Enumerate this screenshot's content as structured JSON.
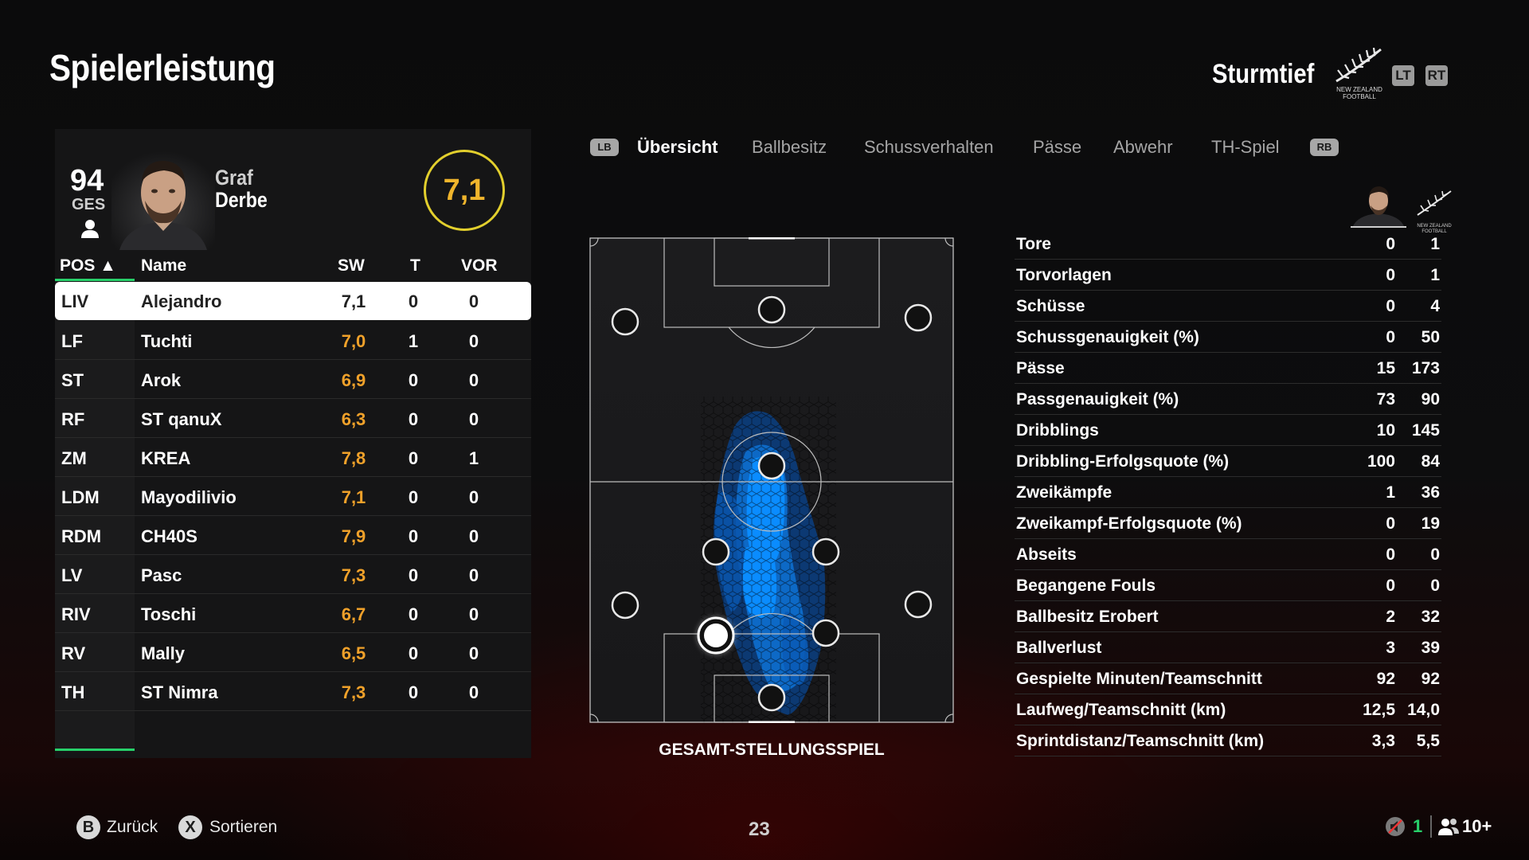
{
  "header": {
    "title": "Spielerleistung",
    "team_name": "Sturmtief",
    "team_logo_text": "NEW ZEALAND FOOTBALL",
    "lt_label": "LT",
    "rt_label": "RT"
  },
  "player": {
    "overall": "94",
    "overall_label": "GES",
    "first_name": "Graf",
    "last_name": "Derbe",
    "match_rating": "7,1"
  },
  "table": {
    "headers": {
      "pos": "POS ▲",
      "name": "Name",
      "sw": "SW",
      "t": "T",
      "vor": "VOR"
    },
    "rows": [
      {
        "pos": "LIV",
        "name": "Alejandro",
        "sw": "7,1",
        "t": "0",
        "vor": "0"
      },
      {
        "pos": "LF",
        "name": "Tuchti",
        "sw": "7,0",
        "t": "1",
        "vor": "0"
      },
      {
        "pos": "ST",
        "name": "Arok",
        "sw": "6,9",
        "t": "0",
        "vor": "0"
      },
      {
        "pos": "RF",
        "name": "ST qanuX",
        "sw": "6,3",
        "t": "0",
        "vor": "0"
      },
      {
        "pos": "ZM",
        "name": "KREA",
        "sw": "7,8",
        "t": "0",
        "vor": "1"
      },
      {
        "pos": "LDM",
        "name": "Mayodilivio",
        "sw": "7,1",
        "t": "0",
        "vor": "0"
      },
      {
        "pos": "RDM",
        "name": "CH40S",
        "sw": "7,9",
        "t": "0",
        "vor": "0"
      },
      {
        "pos": "LV",
        "name": "Pasc",
        "sw": "7,3",
        "t": "0",
        "vor": "0"
      },
      {
        "pos": "RIV",
        "name": "Toschi",
        "sw": "6,7",
        "t": "0",
        "vor": "0"
      },
      {
        "pos": "RV",
        "name": "Mally",
        "sw": "6,5",
        "t": "0",
        "vor": "0"
      },
      {
        "pos": "TH",
        "name": "ST Nimra",
        "sw": "7,3",
        "t": "0",
        "vor": "0"
      }
    ]
  },
  "tabs": {
    "lb": "LB",
    "rb": "RB",
    "items": [
      "Übersicht",
      "Ballbesitz",
      "Schussverhalten",
      "Pässe",
      "Abwehr",
      "TH-Spiel"
    ],
    "active": "Übersicht"
  },
  "pitch": {
    "caption": "GESAMT-STELLUNGSSPIEL"
  },
  "stats": {
    "team_logo_text": "NEW ZEALAND FOOTBALL",
    "rows": [
      {
        "label": "Tore",
        "player": "0",
        "team": "1"
      },
      {
        "label": "Torvorlagen",
        "player": "0",
        "team": "1"
      },
      {
        "label": "Schüsse",
        "player": "0",
        "team": "4"
      },
      {
        "label": "Schussgenauigkeit (%)",
        "player": "0",
        "team": "50"
      },
      {
        "label": "Pässe",
        "player": "15",
        "team": "173"
      },
      {
        "label": "Passgenauigkeit (%)",
        "player": "73",
        "team": "90"
      },
      {
        "label": "Dribblings",
        "player": "10",
        "team": "145"
      },
      {
        "label": "Dribbling-Erfolgsquote (%)",
        "player": "100",
        "team": "84"
      },
      {
        "label": "Zweikämpfe",
        "player": "1",
        "team": "36"
      },
      {
        "label": "Zweikampf-Erfolgsquote (%)",
        "player": "0",
        "team": "19"
      },
      {
        "label": "Abseits",
        "player": "0",
        "team": "0"
      },
      {
        "label": "Begangene Fouls",
        "player": "0",
        "team": "0"
      },
      {
        "label": "Ballbesitz Erobert",
        "player": "2",
        "team": "32"
      },
      {
        "label": "Ballverlust",
        "player": "3",
        "team": "39"
      },
      {
        "label": "Gespielte Minuten/Teamschnitt",
        "player": "92",
        "team": "92"
      },
      {
        "label": "Laufweg/Teamschnitt (km)",
        "player": "12,5",
        "team": "14,0"
      },
      {
        "label": "Sprintdistanz/Teamschnitt (km)",
        "player": "3,3",
        "team": "5,5"
      }
    ]
  },
  "footer": {
    "back_key": "B",
    "back_label": "Zurück",
    "sort_key": "X",
    "sort_label": "Sortieren",
    "page_number": "23",
    "mic_count": "1",
    "party_count": "10+"
  },
  "colors": {
    "accent_green": "#27d06a",
    "rating_yellow": "#e2cf2d",
    "rating_orange": "#f0a12a",
    "heatmap_blue": "#0a8cff"
  }
}
